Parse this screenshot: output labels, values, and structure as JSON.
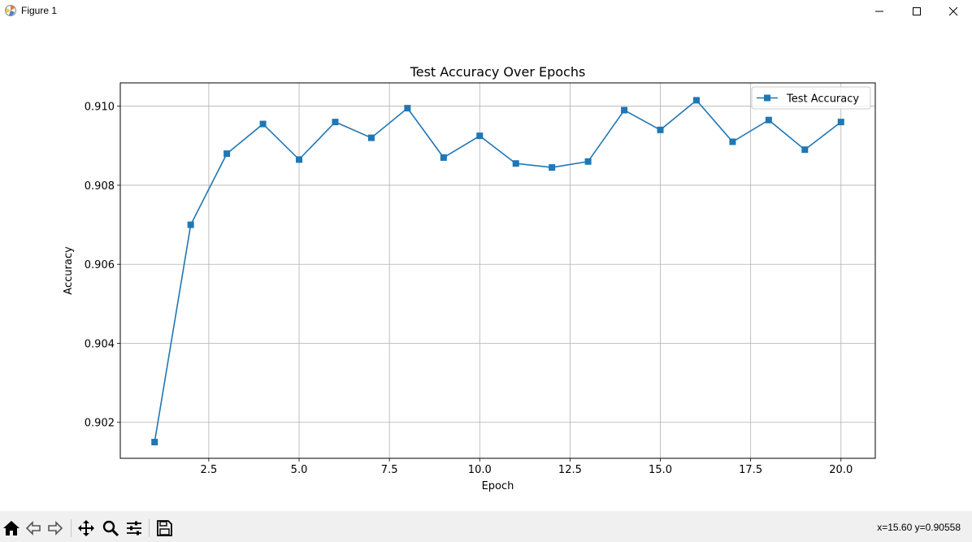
{
  "window": {
    "title": "Figure 1",
    "controls": {
      "minimize_icon": "minimize-icon",
      "maximize_icon": "maximize-icon",
      "close_icon": "close-icon"
    }
  },
  "toolbar": {
    "tools": [
      "home-icon",
      "back-arrow-icon",
      "forward-arrow-icon",
      "pan-icon",
      "zoom-icon",
      "configure-subplots-icon",
      "save-icon"
    ],
    "coords_text": "x=15.60 y=0.90558"
  },
  "colors": {
    "series": "#1f77b4",
    "grid": "#b0b0b0",
    "toolbar_bg": "#f0f0f0"
  },
  "chart_data": {
    "type": "line",
    "title": "Test Accuracy Over Epochs",
    "xlabel": "Epoch",
    "ylabel": "Accuracy",
    "xlim": [
      0.05,
      20.95
    ],
    "ylim": [
      0.90109,
      0.91059
    ],
    "xticks": [
      2.5,
      5.0,
      7.5,
      10.0,
      12.5,
      15.0,
      17.5,
      20.0
    ],
    "xtick_labels": [
      "2.5",
      "5.0",
      "7.5",
      "10.0",
      "12.5",
      "15.0",
      "17.5",
      "20.0"
    ],
    "yticks": [
      0.902,
      0.904,
      0.906,
      0.908,
      0.91
    ],
    "ytick_labels": [
      "0.902",
      "0.904",
      "0.906",
      "0.908",
      "0.910"
    ],
    "grid": true,
    "legend_position": "top-right",
    "marker": "square",
    "series": [
      {
        "name": "Test Accuracy",
        "x": [
          1,
          2,
          3,
          4,
          5,
          6,
          7,
          8,
          9,
          10,
          11,
          12,
          13,
          14,
          15,
          16,
          17,
          18,
          19,
          20
        ],
        "y": [
          0.9015,
          0.907,
          0.9088,
          0.90955,
          0.90865,
          0.9096,
          0.9092,
          0.90995,
          0.9087,
          0.90925,
          0.90855,
          0.90845,
          0.9086,
          0.9099,
          0.9094,
          0.91015,
          0.9091,
          0.90965,
          0.9089,
          0.9096
        ]
      }
    ]
  }
}
